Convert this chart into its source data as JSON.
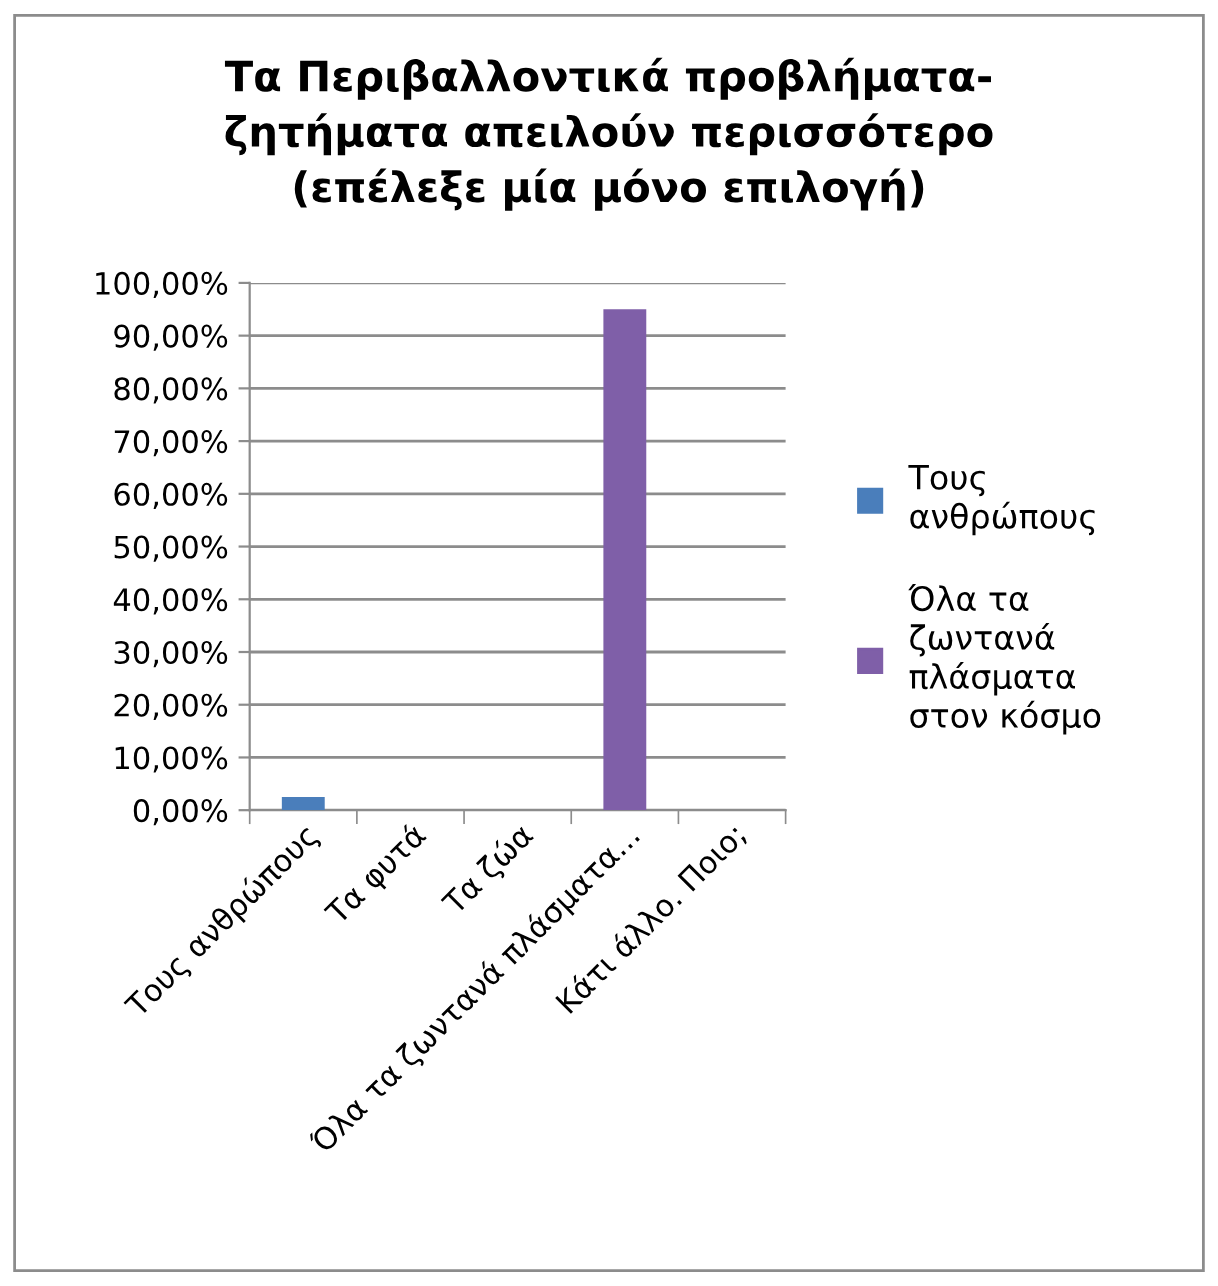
{
  "chart_data": {
    "type": "bar",
    "title": "Τα Περιβαλλοντικά προβλήματα-\nζητήματα απειλούν περισσότερο\n(επέλεξε μία μόνο επιλογή)",
    "categories": [
      "Τους ανθρώπους",
      "Τα φυτά",
      "Τα ζώα",
      "Όλα τα ζωντανά πλάσματα...",
      "Κάτι άλλο. Ποιο;"
    ],
    "series": [
      {
        "name": "Τους ανθρώπους",
        "color": "#4a7ebb",
        "values": [
          2.5,
          null,
          null,
          null,
          null
        ]
      },
      {
        "name": "Όλα τα ζωντανά πλάσματα στον κόσμο",
        "color": "#7f5fa8",
        "values": [
          null,
          null,
          null,
          95,
          null
        ]
      }
    ],
    "ylim": [
      0,
      100
    ],
    "yticks": [
      {
        "value": 0,
        "label": "0,00%"
      },
      {
        "value": 10,
        "label": "10,00%"
      },
      {
        "value": 20,
        "label": "20,00%"
      },
      {
        "value": 30,
        "label": "30,00%"
      },
      {
        "value": 40,
        "label": "40,00%"
      },
      {
        "value": 50,
        "label": "50,00%"
      },
      {
        "value": 60,
        "label": "60,00%"
      },
      {
        "value": 70,
        "label": "70,00%"
      },
      {
        "value": 80,
        "label": "80,00%"
      },
      {
        "value": 90,
        "label": "90,00%"
      },
      {
        "value": 100,
        "label": "100,00%"
      }
    ],
    "grid": "y",
    "legend": "right"
  }
}
